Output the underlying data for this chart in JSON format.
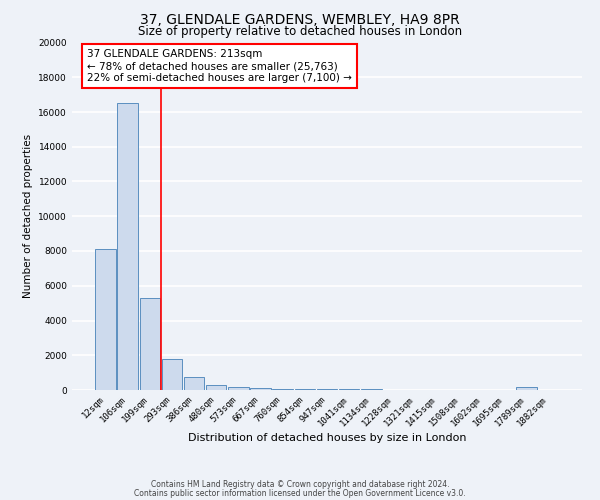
{
  "title1": "37, GLENDALE GARDENS, WEMBLEY, HA9 8PR",
  "title2": "Size of property relative to detached houses in London",
  "xlabel": "Distribution of detached houses by size in London",
  "ylabel": "Number of detached properties",
  "bar_labels": [
    "12sqm",
    "106sqm",
    "199sqm",
    "293sqm",
    "386sqm",
    "480sqm",
    "573sqm",
    "667sqm",
    "760sqm",
    "854sqm",
    "947sqm",
    "1041sqm",
    "1134sqm",
    "1228sqm",
    "1321sqm",
    "1415sqm",
    "1508sqm",
    "1602sqm",
    "1695sqm",
    "1789sqm",
    "1882sqm"
  ],
  "bar_values": [
    8100,
    16500,
    5300,
    1800,
    750,
    300,
    180,
    120,
    80,
    60,
    50,
    40,
    30,
    25,
    20,
    15,
    12,
    10,
    8,
    150,
    5
  ],
  "bar_color": "#cddaed",
  "bar_edge_color": "#5a8fc0",
  "vline_position": 2.5,
  "vline_color": "red",
  "ylim": [
    0,
    20000
  ],
  "yticks": [
    0,
    2000,
    4000,
    6000,
    8000,
    10000,
    12000,
    14000,
    16000,
    18000,
    20000
  ],
  "annotation_title": "37 GLENDALE GARDENS: 213sqm",
  "annotation_line1": "← 78% of detached houses are smaller (25,763)",
  "annotation_line2": "22% of semi-detached houses are larger (7,100) →",
  "annotation_box_color": "white",
  "annotation_box_edge": "red",
  "footer1": "Contains HM Land Registry data © Crown copyright and database right 2024.",
  "footer2": "Contains public sector information licensed under the Open Government Licence v3.0.",
  "bg_color": "#eef2f8",
  "grid_color": "white",
  "title1_fontsize": 10,
  "title2_fontsize": 8.5,
  "xlabel_fontsize": 8,
  "ylabel_fontsize": 7.5,
  "tick_fontsize": 6.5,
  "annot_fontsize": 7.5,
  "footer_fontsize": 5.5
}
